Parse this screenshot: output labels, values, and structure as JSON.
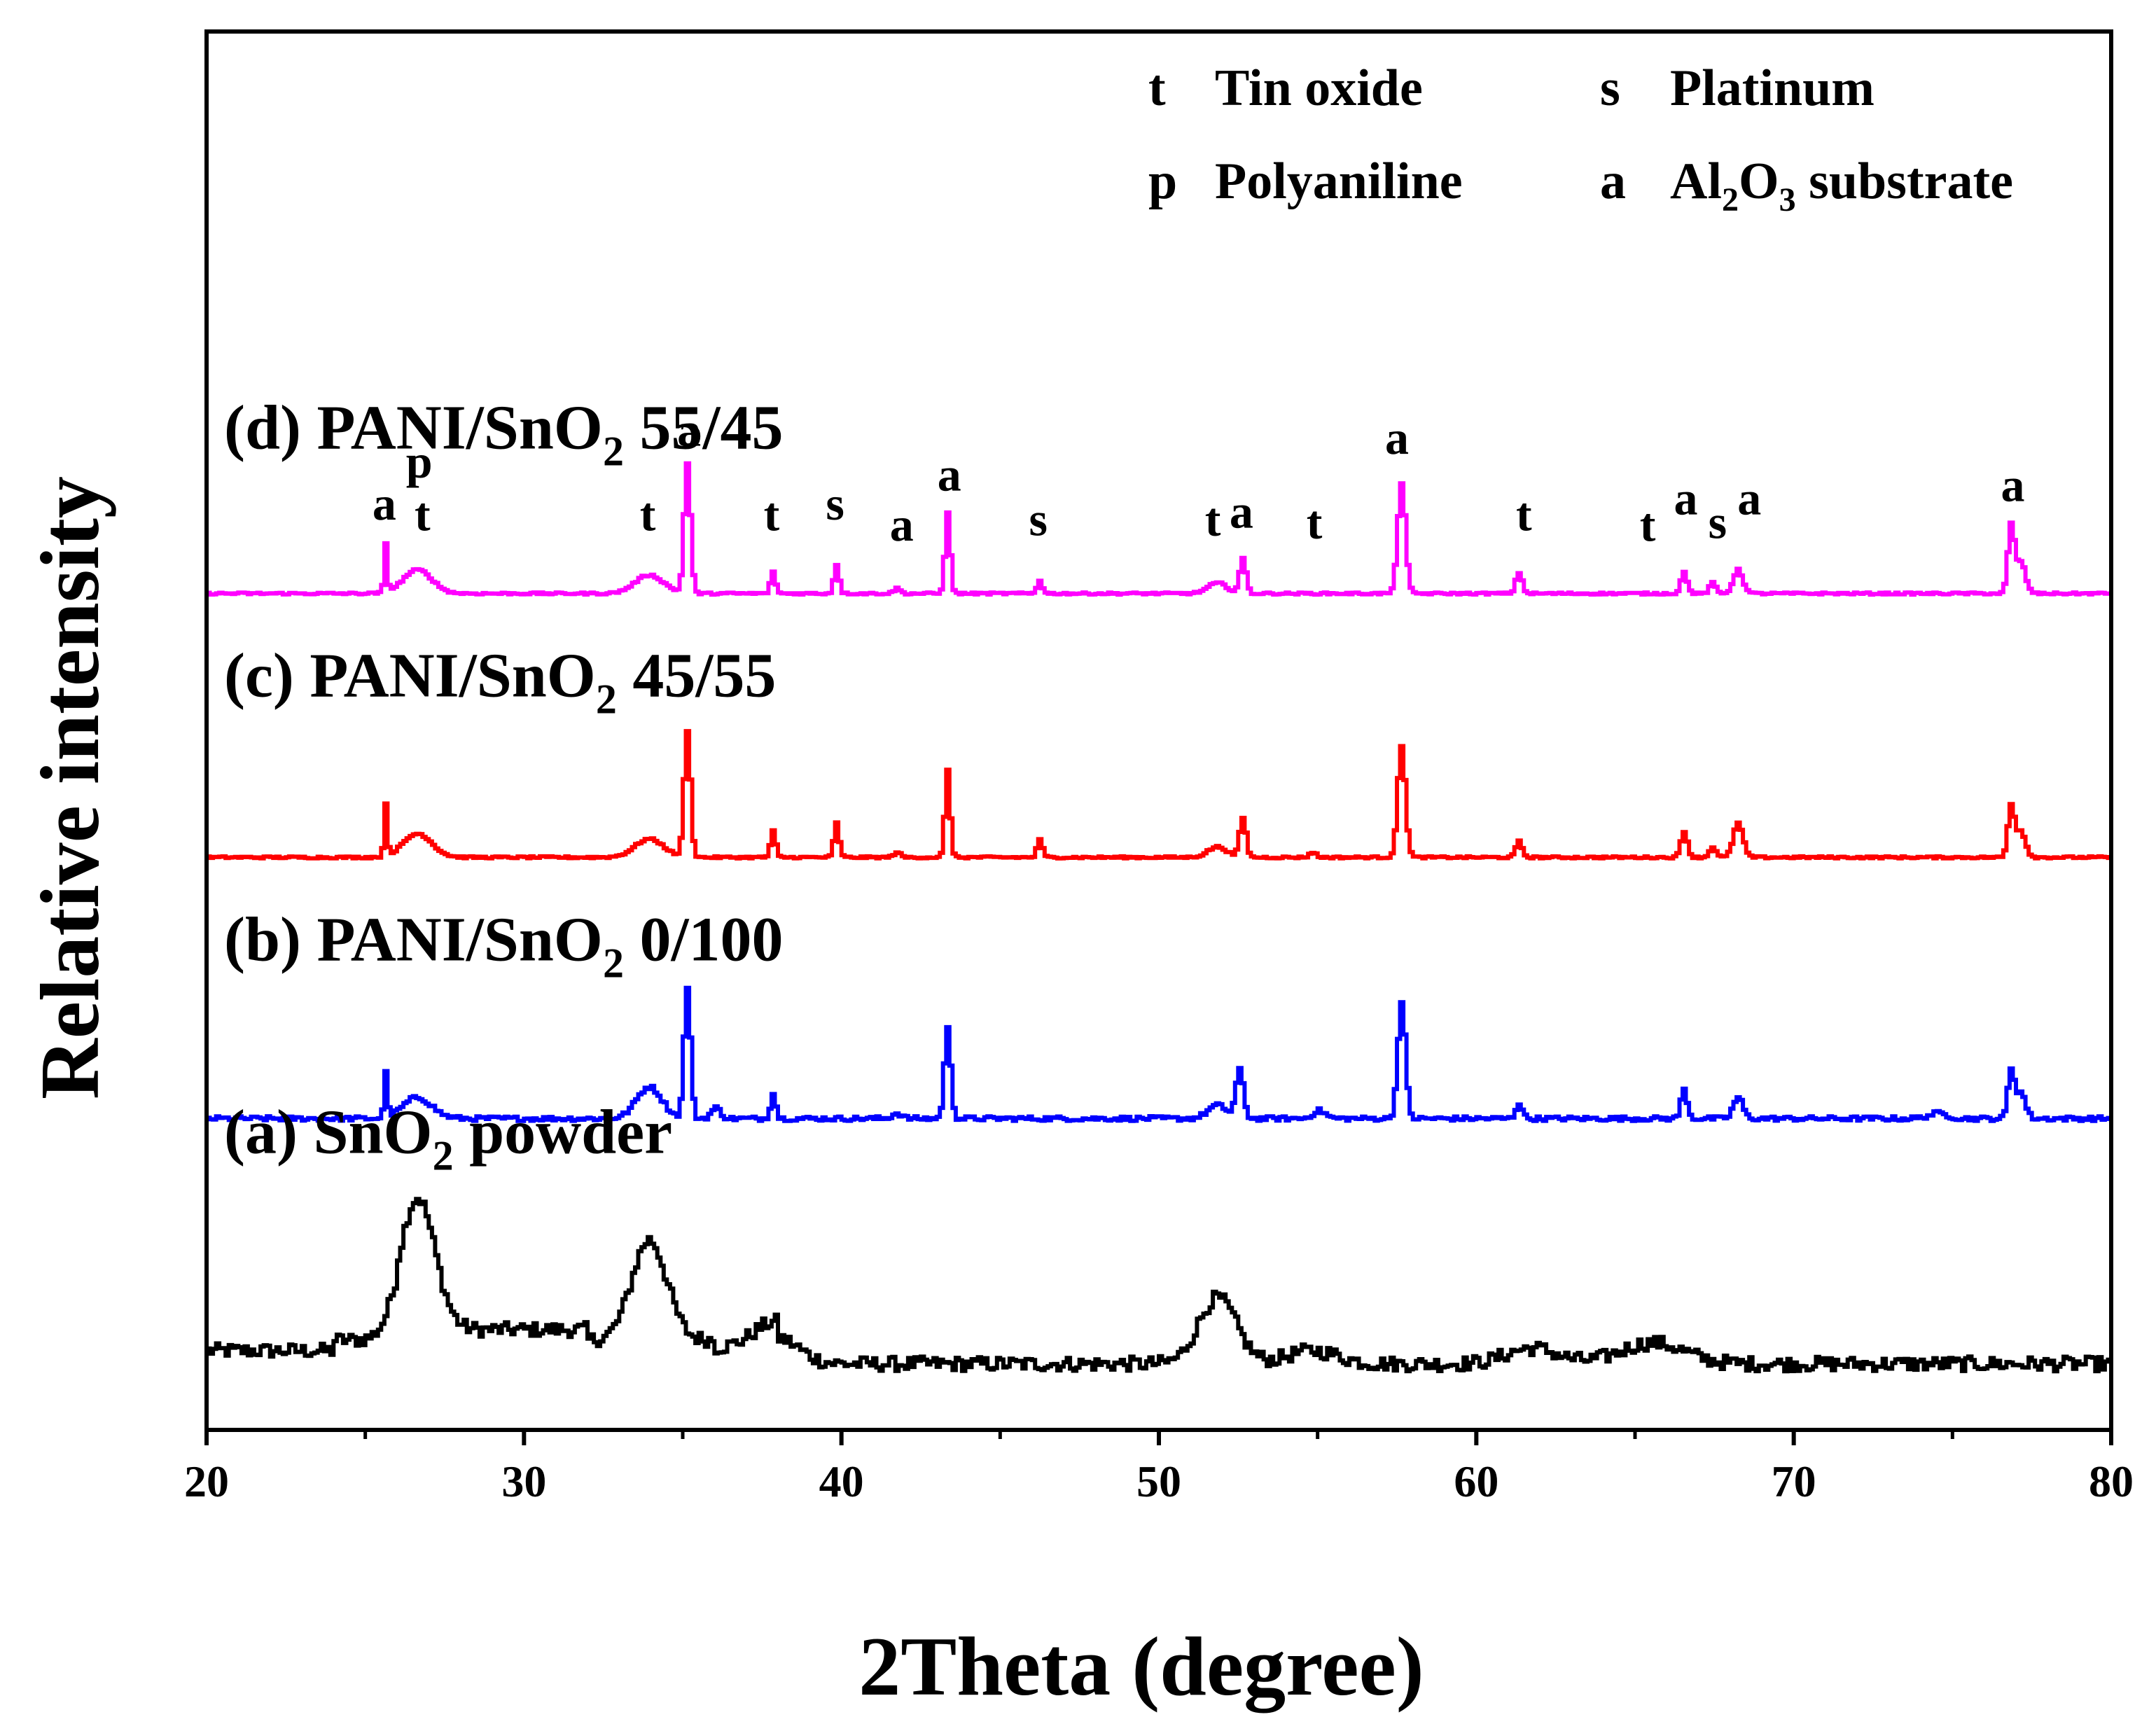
{
  "chart_data": {
    "type": "line",
    "xlabel": "2Theta (degree)",
    "ylabel": "Relative intensity",
    "xlim": [
      20,
      80
    ],
    "ylim": [
      0,
      5.3
    ],
    "xticks": [
      "20",
      "30",
      "40",
      "50",
      "60",
      "70",
      "80"
    ],
    "yticks_shown": false,
    "legend": [
      {
        "symbol": "t",
        "name": "Tin oxide"
      },
      {
        "symbol": "s",
        "name": "Platinum"
      },
      {
        "symbol": "p",
        "name": "Polyaniline"
      },
      {
        "symbol": "a",
        "name": "Al2O3 substrate"
      }
    ],
    "legend_position": "top-right",
    "series": [
      {
        "key": "a",
        "name": "(a) SnO2 powder",
        "label_prefix": "(a) SnO",
        "label_sub": "2",
        "label_suffix": " powder",
        "color": "#000000",
        "baseline": 0.25,
        "noise": 0.028,
        "peaks": [
          [
            26.6,
            0.5,
            0.55
          ],
          [
            33.9,
            0.38,
            0.55
          ],
          [
            37.9,
            0.1,
            0.7
          ],
          [
            51.8,
            0.25,
            0.6
          ],
          [
            54.8,
            0.05,
            0.8
          ],
          [
            61.7,
            0.06,
            0.8
          ],
          [
            65.5,
            0.08,
            1.0
          ]
        ],
        "bumps": [
          [
            20,
            24,
            0.05
          ],
          [
            24,
            26,
            0.09
          ],
          [
            26,
            32,
            0.13
          ],
          [
            32,
            36,
            0.09
          ],
          [
            36,
            38,
            0.06
          ]
        ]
      },
      {
        "key": "b",
        "name": "(b) PANI/SnO2 0/100",
        "label_prefix": "(b) PANI/SnO",
        "label_sub": "2",
        "label_suffix": " 0/100",
        "color": "#0000ff",
        "baseline": 1.18,
        "noise": 0.009,
        "peaks": [
          [
            25.6,
            0.18,
            0.05
          ],
          [
            26.6,
            0.08,
            0.45
          ],
          [
            33.9,
            0.12,
            0.4
          ],
          [
            35.1,
            0.5,
            0.1
          ],
          [
            36.0,
            0.04,
            0.15
          ],
          [
            37.8,
            0.1,
            0.08
          ],
          [
            41.7,
            0.02,
            0.15
          ],
          [
            43.3,
            0.34,
            0.1
          ],
          [
            51.8,
            0.05,
            0.3
          ],
          [
            52.5,
            0.18,
            0.12
          ],
          [
            55.0,
            0.03,
            0.2
          ],
          [
            57.6,
            0.44,
            0.12
          ],
          [
            61.3,
            0.06,
            0.1
          ],
          [
            66.5,
            0.11,
            0.1
          ],
          [
            68.2,
            0.08,
            0.15
          ],
          [
            74.5,
            0.02,
            0.3
          ],
          [
            76.8,
            0.18,
            0.1
          ],
          [
            77.1,
            0.1,
            0.15
          ]
        ],
        "bumps": []
      },
      {
        "key": "c",
        "name": "(c) PANI/SnO2 45/55",
        "label_prefix": "(c) PANI/SnO",
        "label_sub": "2",
        "label_suffix": " 45/55",
        "color": "#ff0000",
        "baseline": 2.17,
        "noise": 0.004,
        "peaks": [
          [
            25.6,
            0.2,
            0.05
          ],
          [
            26.6,
            0.09,
            0.45
          ],
          [
            33.9,
            0.07,
            0.45
          ],
          [
            35.1,
            0.48,
            0.1
          ],
          [
            37.8,
            0.1,
            0.08
          ],
          [
            39.8,
            0.13,
            0.08
          ],
          [
            41.7,
            0.02,
            0.1
          ],
          [
            43.3,
            0.33,
            0.08
          ],
          [
            46.2,
            0.07,
            0.08
          ],
          [
            51.8,
            0.04,
            0.3
          ],
          [
            52.6,
            0.15,
            0.1
          ],
          [
            54.8,
            0.02,
            0.1
          ],
          [
            57.6,
            0.42,
            0.12
          ],
          [
            61.3,
            0.06,
            0.1
          ],
          [
            66.5,
            0.1,
            0.1
          ],
          [
            67.4,
            0.04,
            0.1
          ],
          [
            68.2,
            0.13,
            0.15
          ],
          [
            76.8,
            0.19,
            0.1
          ],
          [
            77.1,
            0.1,
            0.15
          ]
        ],
        "bumps": []
      },
      {
        "key": "d",
        "name": "(d) PANI/SnO2 55/45",
        "label_prefix": "(d) PANI/SnO",
        "label_sub": "2",
        "label_suffix": " 55/45",
        "color": "#ff00ff",
        "baseline": 3.17,
        "noise": 0.004,
        "peaks": [
          [
            25.6,
            0.18,
            0.05
          ],
          [
            26.6,
            0.09,
            0.45
          ],
          [
            33.9,
            0.07,
            0.45
          ],
          [
            35.1,
            0.49,
            0.1
          ],
          [
            37.8,
            0.08,
            0.08
          ],
          [
            39.8,
            0.11,
            0.08
          ],
          [
            41.7,
            0.02,
            0.1
          ],
          [
            43.3,
            0.31,
            0.08
          ],
          [
            46.2,
            0.05,
            0.08
          ],
          [
            51.8,
            0.04,
            0.3
          ],
          [
            52.6,
            0.13,
            0.1
          ],
          [
            57.6,
            0.42,
            0.12
          ],
          [
            61.3,
            0.08,
            0.1
          ],
          [
            66.5,
            0.08,
            0.1
          ],
          [
            67.4,
            0.04,
            0.1
          ],
          [
            68.2,
            0.09,
            0.15
          ],
          [
            76.8,
            0.25,
            0.1
          ],
          [
            77.1,
            0.12,
            0.15
          ]
        ],
        "bumps": []
      }
    ],
    "peak_labels": [
      {
        "text": "a",
        "x": 25.6,
        "y": 3.45
      },
      {
        "text": "p",
        "x": 26.7,
        "y": 3.61
      },
      {
        "text": "t",
        "x": 26.8,
        "y": 3.41
      },
      {
        "text": "t",
        "x": 33.9,
        "y": 3.41
      },
      {
        "text": "a",
        "x": 35.2,
        "y": 3.73
      },
      {
        "text": "t",
        "x": 37.8,
        "y": 3.41
      },
      {
        "text": "s",
        "x": 39.8,
        "y": 3.45
      },
      {
        "text": "a",
        "x": 41.9,
        "y": 3.37
      },
      {
        "text": "a",
        "x": 43.4,
        "y": 3.56
      },
      {
        "text": "s",
        "x": 46.2,
        "y": 3.39
      },
      {
        "text": "t",
        "x": 51.7,
        "y": 3.39
      },
      {
        "text": "a",
        "x": 52.6,
        "y": 3.42
      },
      {
        "text": "t",
        "x": 54.9,
        "y": 3.38
      },
      {
        "text": "a",
        "x": 57.5,
        "y": 3.7
      },
      {
        "text": "t",
        "x": 61.5,
        "y": 3.41
      },
      {
        "text": "t",
        "x": 65.4,
        "y": 3.37
      },
      {
        "text": "a",
        "x": 66.6,
        "y": 3.47
      },
      {
        "text": "s",
        "x": 67.6,
        "y": 3.38
      },
      {
        "text": "a",
        "x": 68.6,
        "y": 3.47
      },
      {
        "text": "a",
        "x": 76.9,
        "y": 3.52
      }
    ]
  }
}
